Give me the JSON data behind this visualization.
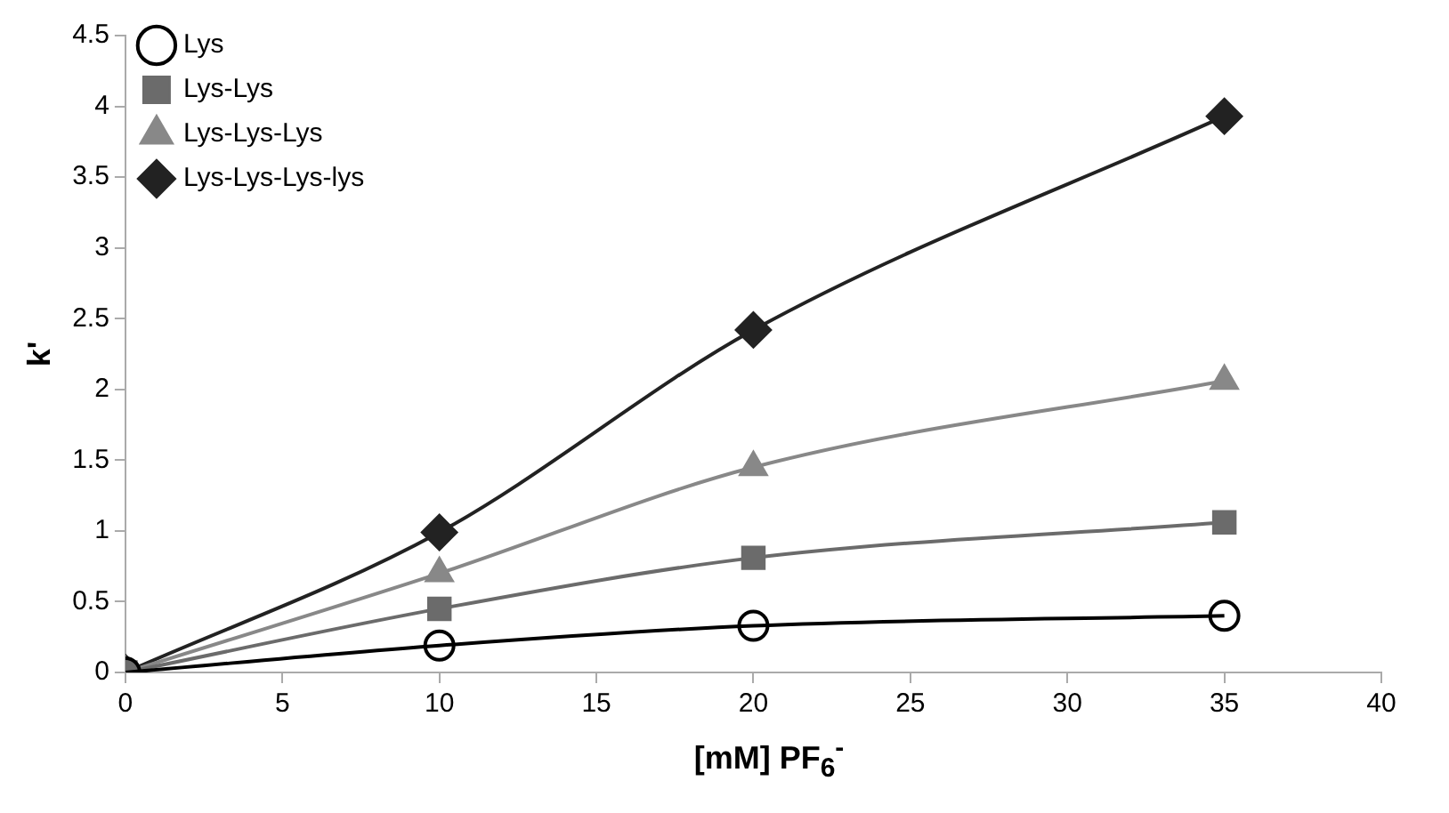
{
  "chart_data": {
    "type": "line",
    "xlabel": "[mM] PF$_{6}$$^{-}$",
    "ylabel": "k'",
    "x": [
      0,
      10,
      20,
      35
    ],
    "series": [
      {
        "name": "Lys",
        "color": "#000000",
        "marker": "circle",
        "values": [
          0,
          0.19,
          0.33,
          0.4
        ]
      },
      {
        "name": "Lys-Lys",
        "color": "#6b6b6b",
        "marker": "square",
        "values": [
          0,
          0.45,
          0.81,
          1.06
        ]
      },
      {
        "name": "Lys-Lys-Lys",
        "color": "#888888",
        "marker": "triangle",
        "values": [
          0,
          0.7,
          1.45,
          2.06
        ]
      },
      {
        "name": "Lys-Lys-Lys-lys",
        "color": "#222222",
        "marker": "diamond",
        "values": [
          0,
          0.99,
          2.42,
          3.93
        ]
      }
    ],
    "xlim": [
      0,
      40
    ],
    "xticks": [
      0,
      5,
      10,
      15,
      20,
      25,
      30,
      35,
      40
    ],
    "ylim": [
      0,
      4.5
    ],
    "yticks": [
      0,
      0.5,
      1,
      1.5,
      2,
      2.5,
      3,
      3.5,
      4,
      4.5
    ],
    "grid": false,
    "legend": "top left",
    "line_style": "solid"
  }
}
